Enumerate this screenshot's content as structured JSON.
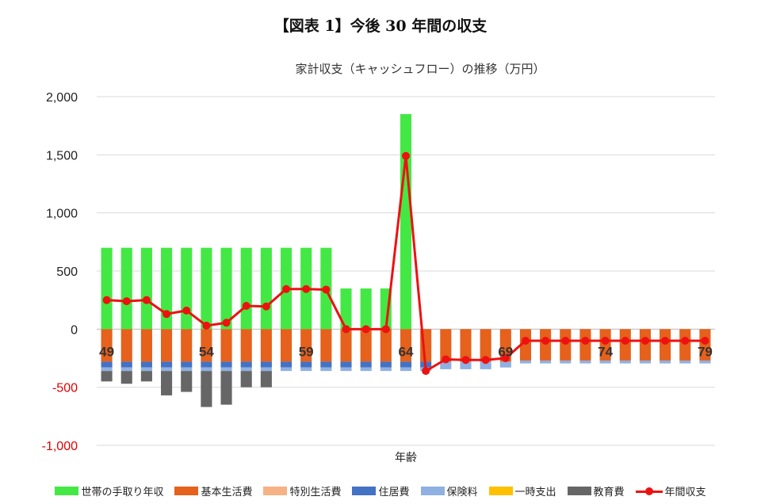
{
  "figure_title": "【図表 1】今後 30 年間の収支",
  "chart_data": {
    "type": "bar",
    "title": "家計収支（キャッシュフロー）の推移（万円）",
    "xlabel": "年齢",
    "ylabel": "",
    "ylim": [
      -1000,
      2000
    ],
    "yticks": [
      "2,000",
      "1,500",
      "1,000",
      "500",
      "0",
      "-500",
      "-1,000"
    ],
    "ytick_values": [
      2000,
      1500,
      1000,
      500,
      0,
      -500,
      -1000
    ],
    "grid": true,
    "legend_position": "bottom",
    "x": [
      49,
      50,
      51,
      52,
      53,
      54,
      55,
      56,
      57,
      58,
      59,
      60,
      61,
      62,
      63,
      64,
      65,
      66,
      67,
      68,
      69,
      70,
      71,
      72,
      73,
      74,
      75,
      76,
      77,
      78,
      79
    ],
    "x_tick_labels": [
      "49",
      "54",
      "59",
      "64",
      "69",
      "74",
      "79"
    ],
    "x_tick_positions": [
      49,
      54,
      59,
      64,
      69,
      74,
      79
    ],
    "series": [
      {
        "name": "世帯の手取り年収",
        "type": "bar",
        "color": "#44e844",
        "values": [
          700,
          700,
          700,
          700,
          700,
          700,
          700,
          700,
          700,
          700,
          700,
          700,
          350,
          350,
          350,
          1850,
          0,
          0,
          0,
          0,
          0,
          0,
          0,
          0,
          0,
          0,
          0,
          0,
          0,
          0,
          0
        ]
      },
      {
        "name": "基本生活費",
        "type": "bar",
        "color": "#e5611c",
        "values": [
          -280,
          -280,
          -280,
          -280,
          -280,
          -280,
          -280,
          -280,
          -280,
          -280,
          -280,
          -280,
          -280,
          -280,
          -280,
          -280,
          -280,
          -280,
          -280,
          -280,
          -280,
          -270,
          -270,
          -270,
          -270,
          -270,
          -270,
          -270,
          -270,
          -270,
          -270
        ]
      },
      {
        "name": "特別生活費",
        "type": "bar",
        "color": "#f6b284",
        "values": [
          0,
          0,
          0,
          0,
          0,
          0,
          0,
          0,
          0,
          0,
          0,
          0,
          0,
          0,
          0,
          0,
          0,
          0,
          0,
          0,
          0,
          0,
          0,
          0,
          0,
          0,
          0,
          0,
          0,
          0,
          0
        ]
      },
      {
        "name": "住居費",
        "type": "bar",
        "color": "#4472c4",
        "values": [
          -50,
          -50,
          -50,
          -50,
          -50,
          -50,
          -50,
          -50,
          -50,
          -50,
          -50,
          -50,
          -50,
          -50,
          -50,
          -50,
          -50,
          0,
          0,
          0,
          0,
          0,
          0,
          0,
          0,
          0,
          0,
          0,
          0,
          0,
          0
        ]
      },
      {
        "name": "保険料",
        "type": "bar",
        "color": "#8fb0e0",
        "values": [
          -30,
          -30,
          -30,
          -30,
          -30,
          -30,
          -30,
          -30,
          -30,
          -30,
          -30,
          -30,
          -30,
          -30,
          -30,
          -30,
          -30,
          -65,
          -65,
          -65,
          -50,
          -25,
          -25,
          -25,
          -25,
          -25,
          -25,
          -25,
          -25,
          -25,
          -25
        ]
      },
      {
        "name": "一時支出",
        "type": "bar",
        "color": "#ffc000",
        "values": [
          0,
          0,
          0,
          0,
          0,
          0,
          0,
          0,
          0,
          0,
          0,
          0,
          0,
          0,
          0,
          0,
          0,
          0,
          0,
          0,
          0,
          0,
          0,
          0,
          0,
          0,
          0,
          0,
          0,
          0,
          0
        ]
      },
      {
        "name": "教育費",
        "type": "bar",
        "color": "#666666",
        "values": [
          -90,
          -110,
          -90,
          -210,
          -180,
          -310,
          -290,
          -140,
          -140,
          0,
          0,
          0,
          0,
          0,
          0,
          0,
          0,
          0,
          0,
          0,
          0,
          0,
          0,
          0,
          0,
          0,
          0,
          0,
          0,
          0,
          0
        ]
      },
      {
        "name": "年間収支",
        "type": "line",
        "color": "#ee1111",
        "values": [
          250,
          240,
          250,
          130,
          160,
          30,
          55,
          200,
          195,
          345,
          345,
          340,
          0,
          0,
          0,
          1490,
          -360,
          -260,
          -265,
          -265,
          -250,
          -100,
          -100,
          -100,
          -100,
          -100,
          -100,
          -100,
          -100,
          -100,
          -100
        ]
      }
    ]
  }
}
